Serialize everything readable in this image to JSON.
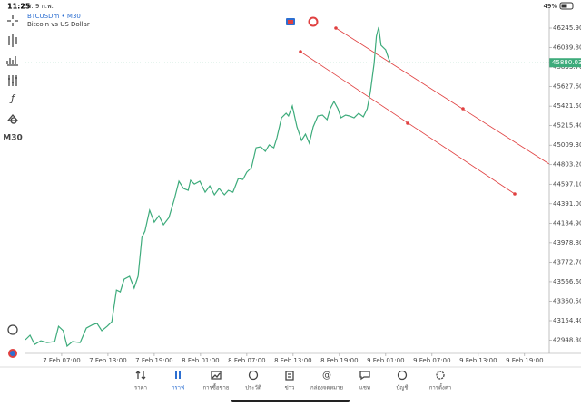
{
  "status_bar": {
    "time": "11:25",
    "date": "ศ. 9 ก.พ.",
    "battery": "49%"
  },
  "toolbar": {
    "timeframe": "M30"
  },
  "chart_data": {
    "type": "line",
    "title": "BTCUSDm • M30",
    "subtitle": "Bitcoin vs US Dollar",
    "color": "#3dab7b",
    "x": [
      2.3,
      2.9,
      3.5,
      4.3,
      5.1,
      6.1,
      6.6,
      7.2,
      7.7,
      8.4,
      9.4,
      10.2,
      11.1,
      11.6,
      12.2,
      12.9,
      13.5,
      14.1,
      14.6,
      15.1,
      15.8,
      16.4,
      16.9,
      17.4,
      17.8,
      18.4,
      19.0,
      19.6,
      20.2,
      20.9,
      21.6,
      22.2,
      22.8,
      23.4,
      23.7,
      24.2,
      24.9,
      25.6,
      26.2,
      26.8,
      27.4,
      28.1,
      28.6,
      29.2,
      29.9,
      30.5,
      31.0,
      31.6,
      32.2,
      32.8,
      33.4,
      33.9,
      34.5,
      34.9,
      35.5,
      36.1,
      36.4,
      36.9,
      37.5,
      38.1,
      38.6,
      39.1,
      39.6,
      40.2,
      40.8,
      41.4,
      41.8,
      42.3,
      42.8,
      43.2,
      43.8,
      44.3,
      44.9,
      45.5,
      46.1,
      46.6,
      47.0,
      47.5,
      47.8,
      48.1,
      48.4,
      49.0,
      49.4,
      49.6
    ],
    "values": [
      42953,
      43001,
      42905,
      42943,
      42924,
      42934,
      43096,
      43049,
      42886,
      42934,
      42924,
      43077,
      43116,
      43125,
      43049,
      43096,
      43144,
      43479,
      43460,
      43594,
      43623,
      43499,
      43623,
      44035,
      44102,
      44322,
      44197,
      44264,
      44169,
      44245,
      44437,
      44628,
      44552,
      44532,
      44638,
      44599,
      44628,
      44513,
      44580,
      44485,
      44552,
      44485,
      44532,
      44513,
      44657,
      44647,
      44724,
      44772,
      44982,
      44992,
      44944,
      45011,
      44982,
      45088,
      45298,
      45346,
      45317,
      45423,
      45203,
      45059,
      45126,
      45030,
      45203,
      45317,
      45327,
      45279,
      45394,
      45471,
      45394,
      45298,
      45327,
      45317,
      45298,
      45346,
      45308,
      45394,
      45566,
      45873,
      46160,
      46256,
      46064,
      46016,
      45921,
      45892
    ],
    "xlim": [
      2.3,
      70.2
    ],
    "xticks": [
      {
        "value": 7,
        "label": "7 Feb 07:00"
      },
      {
        "value": 13,
        "label": "7 Feb 13:00"
      },
      {
        "value": 19,
        "label": "7 Feb 19:00"
      },
      {
        "value": 25,
        "label": "8 Feb 01:00"
      },
      {
        "value": 31,
        "label": "8 Feb 07:00"
      },
      {
        "value": 37,
        "label": "8 Feb 13:00"
      },
      {
        "value": 43,
        "label": "8 Feb 19:00"
      },
      {
        "value": 49,
        "label": "9 Feb 01:00"
      },
      {
        "value": 55,
        "label": "9 Feb 07:00"
      },
      {
        "value": 61,
        "label": "9 Feb 13:00"
      },
      {
        "value": 67,
        "label": "9 Feb 19:00"
      }
    ],
    "ylim": [
      42829,
      46466
    ],
    "yticks": [
      {
        "value": 46245.9,
        "label": "46245.90"
      },
      {
        "value": 46039.8,
        "label": "46039.80"
      },
      {
        "value": 45833.7,
        "label": "45833.70"
      },
      {
        "value": 45627.6,
        "label": "45627.60"
      },
      {
        "value": 45421.5,
        "label": "45421.50"
      },
      {
        "value": 45215.4,
        "label": "45215.40"
      },
      {
        "value": 45009.3,
        "label": "45009.30"
      },
      {
        "value": 44803.2,
        "label": "44803.20"
      },
      {
        "value": 44597.1,
        "label": "44597.10"
      },
      {
        "value": 44391.0,
        "label": "44391.00"
      },
      {
        "value": 44184.9,
        "label": "44184.90"
      },
      {
        "value": 43978.8,
        "label": "43978.80"
      },
      {
        "value": 43772.7,
        "label": "43772.70"
      },
      {
        "value": 43566.6,
        "label": "43566.60"
      },
      {
        "value": 43360.5,
        "label": "43360.50"
      },
      {
        "value": 43154.4,
        "label": "43154.40"
      },
      {
        "value": 42948.3,
        "label": "42948.30"
      }
    ],
    "current_price": 45880.03
  },
  "tabs": [
    "ราคา",
    "กราฟ",
    "การซื้อขาย",
    "ประวัติ",
    "ข่าว",
    "กล่องจดหมาย",
    "แชท",
    "บัญชี",
    "การตั้งค่า"
  ]
}
